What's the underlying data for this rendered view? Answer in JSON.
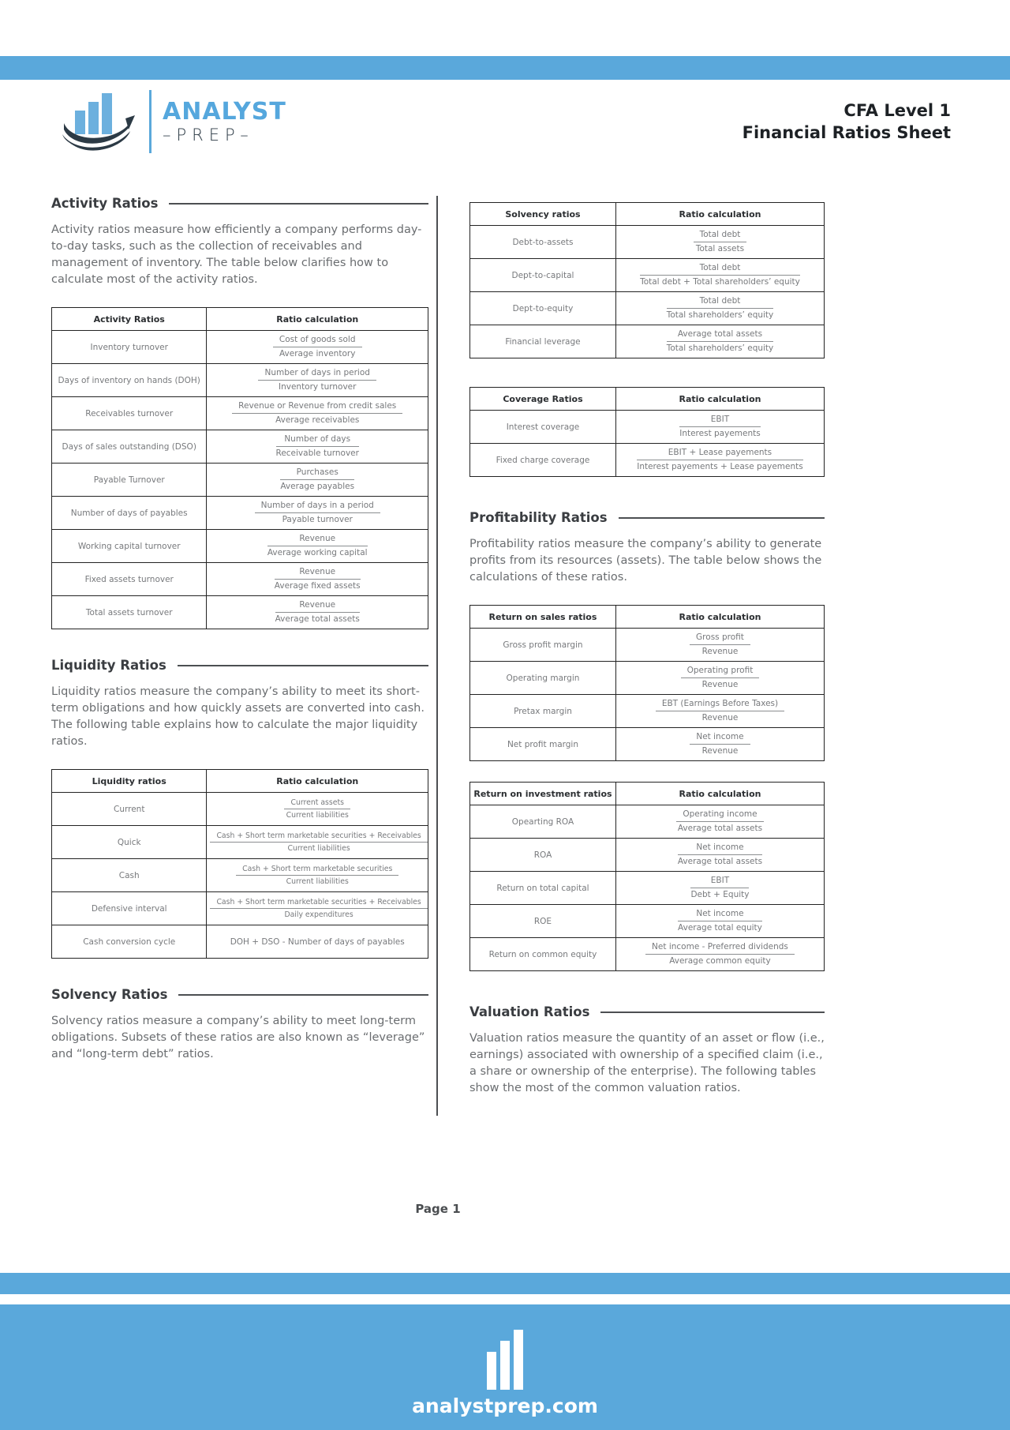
{
  "colors": {
    "accent_blue": "#5aa8db",
    "dark_navy": "#2c3a45",
    "heading_dark": "#3a3d41",
    "body_grey": "#6a6d70",
    "table_border": "#232323"
  },
  "header": {
    "brand_top": "ANALYST",
    "brand_bottom": "–PREP–",
    "title_line1": "CFA Level 1",
    "title_line2": "Financial Ratios Sheet"
  },
  "sections": {
    "activity": {
      "heading": "Activity Ratios",
      "paragraph": "Activity ratios measure how efficiently a company performs day-to-day tasks, such as the collection of receivables and management of inventory. The table below clarifies how to calculate most of the activity ratios.",
      "table": {
        "col1_header": "Activity Ratios",
        "col2_header": "Ratio calculation",
        "rows": [
          {
            "label": "Inventory turnover",
            "num": "Cost of goods sold",
            "den": "Average inventory"
          },
          {
            "label": "Days of inventory on hands (DOH)",
            "num": "Number of days in period",
            "den": "Inventory turnover"
          },
          {
            "label": "Receivables turnover",
            "num": "Revenue or Revenue from credit sales",
            "den": "Average receivables"
          },
          {
            "label": "Days of sales outstanding (DSO)",
            "num": "Number of days",
            "den": "Receivable turnover"
          },
          {
            "label": "Payable Turnover",
            "num": "Purchases",
            "den": "Average payables"
          },
          {
            "label": "Number of days of payables",
            "num": "Number of days in a period",
            "den": "Payable turnover"
          },
          {
            "label": "Working capital turnover",
            "num": "Revenue",
            "den": "Average working capital"
          },
          {
            "label": "Fixed assets turnover",
            "num": "Revenue",
            "den": "Average fixed assets"
          },
          {
            "label": "Total assets turnover",
            "num": "Revenue",
            "den": "Average total assets"
          }
        ]
      }
    },
    "liquidity": {
      "heading": "Liquidity Ratios",
      "paragraph": "Liquidity ratios measure the company’s ability to meet its short-term obligations and how quickly assets are converted into cash. The following table explains how to calculate the major liquidity ratios.",
      "table": {
        "col1_header": "Liquidity ratios",
        "col2_header": "Ratio calculation",
        "rows": [
          {
            "label": "Current",
            "num": "Current assets",
            "den": "Current liabilities"
          },
          {
            "label": "Quick",
            "num": "Cash + Short term marketable securities + Receivables",
            "den": "Current liabilities"
          },
          {
            "label": "Cash",
            "num": "Cash + Short term marketable securities",
            "den": "Current liabilities"
          },
          {
            "label": "Defensive interval",
            "num": "Cash + Short term marketable securities + Receivables",
            "den": "Daily expenditures"
          },
          {
            "label": "Cash conversion cycle",
            "text": "DOH + DSO - Number of days of payables"
          }
        ]
      }
    },
    "solvency": {
      "heading": "Solvency Ratios",
      "paragraph": "Solvency ratios measure a company’s ability to meet long-term obligations. Subsets of these ratios are also known as “leverage” and “long-term debt” ratios.",
      "table": {
        "col1_header": "Solvency ratios",
        "col2_header": "Ratio calculation",
        "rows": [
          {
            "label": "Debt-to-assets",
            "num": "Total debt",
            "den": "Total assets"
          },
          {
            "label": "Dept-to-capital",
            "num": "Total debt",
            "den": "Total debt + Total shareholders’ equity"
          },
          {
            "label": "Dept-to-equity",
            "num": "Total debt",
            "den": "Total shareholders’ equity"
          },
          {
            "label": "Financial leverage",
            "num": "Average total assets",
            "den": "Total shareholders’ equity"
          }
        ]
      }
    },
    "coverage": {
      "table": {
        "col1_header": "Coverage Ratios",
        "col2_header": "Ratio calculation",
        "rows": [
          {
            "label": "Interest coverage",
            "num": "EBIT",
            "den": "Interest payements"
          },
          {
            "label": "Fixed charge coverage",
            "num": "EBIT + Lease payements",
            "den": "Interest payements + Lease payements"
          }
        ]
      }
    },
    "profitability": {
      "heading": "Profitability Ratios",
      "paragraph": "Profitability ratios measure the company’s ability to generate profits from its resources (assets). The table below shows the calculations of these ratios.",
      "sales_table": {
        "col1_header": "Return on sales ratios",
        "col2_header": "Ratio calculation",
        "rows": [
          {
            "label": "Gross profit margin",
            "num": "Gross profit",
            "den": "Revenue"
          },
          {
            "label": "Operating margin",
            "num": "Operating profit",
            "den": "Revenue"
          },
          {
            "label": "Pretax margin",
            "num": "EBT (Earnings Before Taxes)",
            "den": "Revenue"
          },
          {
            "label": "Net profit margin",
            "num": "Net income",
            "den": "Revenue"
          }
        ]
      },
      "investment_table": {
        "col1_header": "Return on investment ratios",
        "col2_header": "Ratio calculation",
        "rows": [
          {
            "label": "Opearting ROA",
            "num": "Operating income",
            "den": "Average total assets"
          },
          {
            "label": "ROA",
            "num": "Net income",
            "den": "Average total assets"
          },
          {
            "label": "Return on total capital",
            "num": "EBIT",
            "den": "Debt + Equity"
          },
          {
            "label": "ROE",
            "num": "Net income",
            "den": "Average total equity"
          },
          {
            "label": "Return on common equity",
            "num": "Net income - Preferred dividends",
            "den": "Average common equity"
          }
        ]
      }
    },
    "valuation": {
      "heading": "Valuation Ratios",
      "paragraph": "Valuation ratios measure the quantity of an asset or flow (i.e., earnings) associated with ownership of a specified claim (i.e., a share or ownership of the enterprise). The following tables show the most of the common valuation ratios."
    }
  },
  "page_number": "Page 1",
  "footer": {
    "site": "analystprep.com"
  }
}
